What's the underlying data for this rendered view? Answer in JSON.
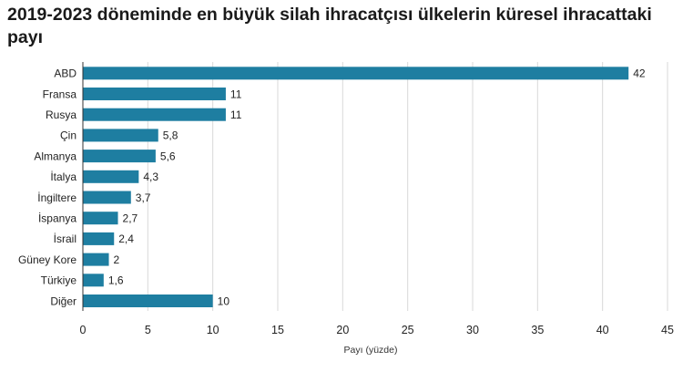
{
  "chart_data": {
    "type": "bar",
    "orientation": "horizontal",
    "title": "2019-2023 döneminde en büyük silah ihracatçısı ülkelerin küresel ihracattaki payı",
    "categories": [
      "ABD",
      "Fransa",
      "Rusya",
      "Çin",
      "Almanya",
      "İtalya",
      "İngiltere",
      "İspanya",
      "İsrail",
      "Güney Kore",
      "Türkiye",
      "Diğer"
    ],
    "values": [
      42,
      11,
      11,
      5.8,
      5.6,
      4.3,
      3.7,
      2.7,
      2.4,
      2,
      1.6,
      10
    ],
    "value_labels": [
      "42",
      "11",
      "11",
      "5,8",
      "5,6",
      "4,3",
      "3,7",
      "2,7",
      "2,4",
      "2",
      "1,6",
      "10"
    ],
    "xlabel": "Payı (yüzde)",
    "ylabel": "",
    "xlim": [
      0,
      45
    ],
    "xticks": [
      0,
      5,
      10,
      15,
      20,
      25,
      30,
      35,
      40,
      45
    ],
    "grid": true,
    "legend": "none",
    "colors": {
      "bar": "#1e7ea1",
      "grid": "#d9d9d9",
      "axis": "#333333"
    }
  }
}
